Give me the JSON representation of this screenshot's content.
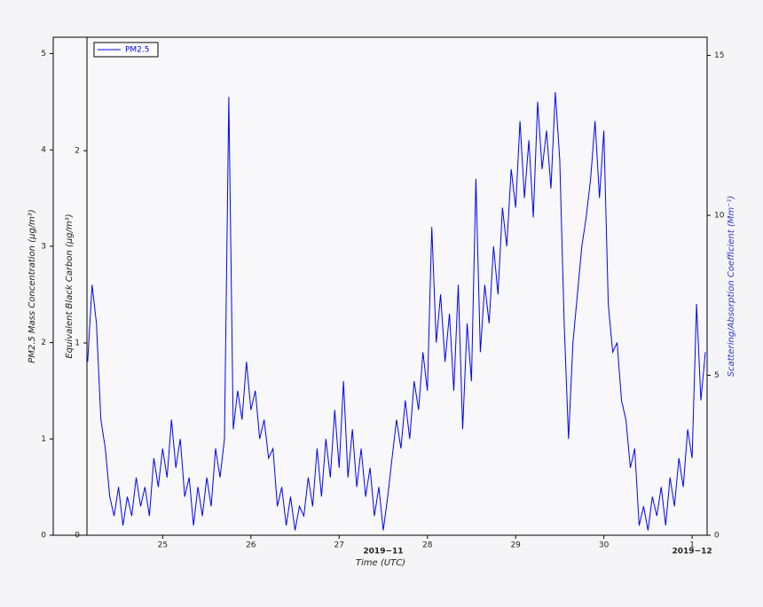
{
  "chart_data": {
    "type": "line",
    "x_label": "Time (UTC)",
    "y_label": "PM2.5 Mass Concentration (µg/m³)",
    "y3_label": "Equivalent Black Carbon (µg/m³)",
    "y2_label": "Scattering/Absorption Coefficient (Mm⁻¹)",
    "xlim": [
      23.76,
      31.17
    ],
    "xticks": [
      25,
      26,
      27,
      28,
      29,
      30,
      {
        "value": 31,
        "label": "1"
      }
    ],
    "x_group_labels": [
      {
        "value": 27.5,
        "label": "2019−11"
      },
      {
        "value": 31,
        "label": "2019−12"
      }
    ],
    "ylim": [
      0,
      5.17
    ],
    "yticks": [
      0,
      1,
      2,
      3,
      4,
      5
    ],
    "y3lim": [
      0,
      2.59
    ],
    "y3ticks": [
      0,
      1,
      2
    ],
    "y2lim": [
      0,
      15.57
    ],
    "y2ticks": [
      0,
      5,
      10,
      15
    ],
    "legend": "upper left",
    "x": [
      24.15,
      24.2,
      24.25,
      24.3,
      24.35,
      24.4,
      24.45,
      24.5,
      24.55,
      24.6,
      24.65,
      24.7,
      24.75,
      24.8,
      24.85,
      24.9,
      24.95,
      25.0,
      25.05,
      25.1,
      25.15,
      25.2,
      25.25,
      25.3,
      25.35,
      25.4,
      25.45,
      25.5,
      25.55,
      25.6,
      25.65,
      25.7,
      25.75,
      25.8,
      25.85,
      25.9,
      25.95,
      26.0,
      26.05,
      26.1,
      26.15,
      26.2,
      26.25,
      26.3,
      26.35,
      26.4,
      26.45,
      26.5,
      26.55,
      26.6,
      26.65,
      26.7,
      26.75,
      26.8,
      26.85,
      26.9,
      26.95,
      27.0,
      27.05,
      27.1,
      27.15,
      27.2,
      27.25,
      27.3,
      27.35,
      27.4,
      27.45,
      27.5,
      27.55,
      27.6,
      27.65,
      27.7,
      27.75,
      27.8,
      27.85,
      27.9,
      27.95,
      28.0,
      28.05,
      28.1,
      28.15,
      28.2,
      28.25,
      28.3,
      28.35,
      28.4,
      28.45,
      28.5,
      28.55,
      28.6,
      28.65,
      28.7,
      28.75,
      28.8,
      28.85,
      28.9,
      28.95,
      29.0,
      29.05,
      29.1,
      29.15,
      29.2,
      29.25,
      29.3,
      29.35,
      29.4,
      29.45,
      29.5,
      29.55,
      29.6,
      29.65,
      29.7,
      29.75,
      29.8,
      29.85,
      29.9,
      29.95,
      30.0,
      30.05,
      30.1,
      30.15,
      30.2,
      30.25,
      30.3,
      30.35,
      30.4,
      30.45,
      30.5,
      30.55,
      30.6,
      30.65,
      30.7,
      30.75,
      30.8,
      30.85,
      30.9,
      30.95,
      31.0,
      31.05,
      31.1,
      31.15
    ],
    "series": [
      {
        "name": "PM2.5",
        "color": "#0000ff",
        "values": [
          1.8,
          2.6,
          2.2,
          1.2,
          0.9,
          0.4,
          0.2,
          0.5,
          0.1,
          0.4,
          0.2,
          0.6,
          0.3,
          0.5,
          0.2,
          0.8,
          0.5,
          0.9,
          0.6,
          1.2,
          0.7,
          1.0,
          0.4,
          0.6,
          0.1,
          0.5,
          0.2,
          0.6,
          0.3,
          0.9,
          0.6,
          1.0,
          4.55,
          1.1,
          1.5,
          1.2,
          1.8,
          1.3,
          1.5,
          1.0,
          1.2,
          0.8,
          0.9,
          0.3,
          0.5,
          0.1,
          0.4,
          0.05,
          0.3,
          0.2,
          0.6,
          0.3,
          0.9,
          0.4,
          1.0,
          0.6,
          1.3,
          0.7,
          1.6,
          0.6,
          1.1,
          0.5,
          0.9,
          0.4,
          0.7,
          0.2,
          0.5,
          0.05,
          0.4,
          0.8,
          1.2,
          0.9,
          1.4,
          1.0,
          1.6,
          1.3,
          1.9,
          1.5,
          3.2,
          2.0,
          2.5,
          1.8,
          2.3,
          1.5,
          2.6,
          1.1,
          2.2,
          1.6,
          3.7,
          1.9,
          2.6,
          2.2,
          3.0,
          2.5,
          3.4,
          3.0,
          3.8,
          3.4,
          4.3,
          3.5,
          4.1,
          3.3,
          4.5,
          3.8,
          4.2,
          3.6,
          4.6,
          3.9,
          2.2,
          1.0,
          2.0,
          2.5,
          3.0,
          3.3,
          3.7,
          4.3,
          3.5,
          4.2,
          2.4,
          1.9,
          2.0,
          1.4,
          1.2,
          0.7,
          0.9,
          0.1,
          0.3,
          0.05,
          0.4,
          0.2,
          0.5,
          0.1,
          0.6,
          0.3,
          0.8,
          0.5,
          1.1,
          0.8,
          2.4,
          1.4,
          1.9
        ]
      }
    ]
  }
}
